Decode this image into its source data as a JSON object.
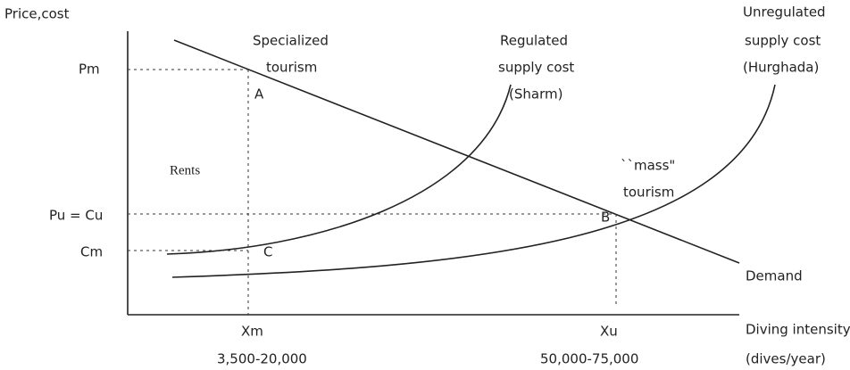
{
  "y_axis_label": "Price,cost",
  "x_axis_label": [
    "Diving intensity",
    "(dives/year)"
  ],
  "y_labels": {
    "pm": "Pm",
    "pu": "Pu = Cu",
    "cm": "Cm"
  },
  "x_labels": {
    "xm": "Xm",
    "xu": "Xu",
    "xm_range": "3,500-20,000",
    "xu_range": "50,000-75,000"
  },
  "points": {
    "a": "A",
    "b": "B",
    "c": "C"
  },
  "region": "Rents",
  "curve_labels": {
    "specialized": [
      "Specialized",
      "tourism"
    ],
    "regulated": [
      "Regulated",
      "supply cost",
      "(Sharm)"
    ],
    "unregulated": [
      "Unregulated",
      "supply cost",
      "(Hurghada)"
    ],
    "mass": [
      "``mass\"",
      "tourism"
    ],
    "demand": "Demand"
  }
}
